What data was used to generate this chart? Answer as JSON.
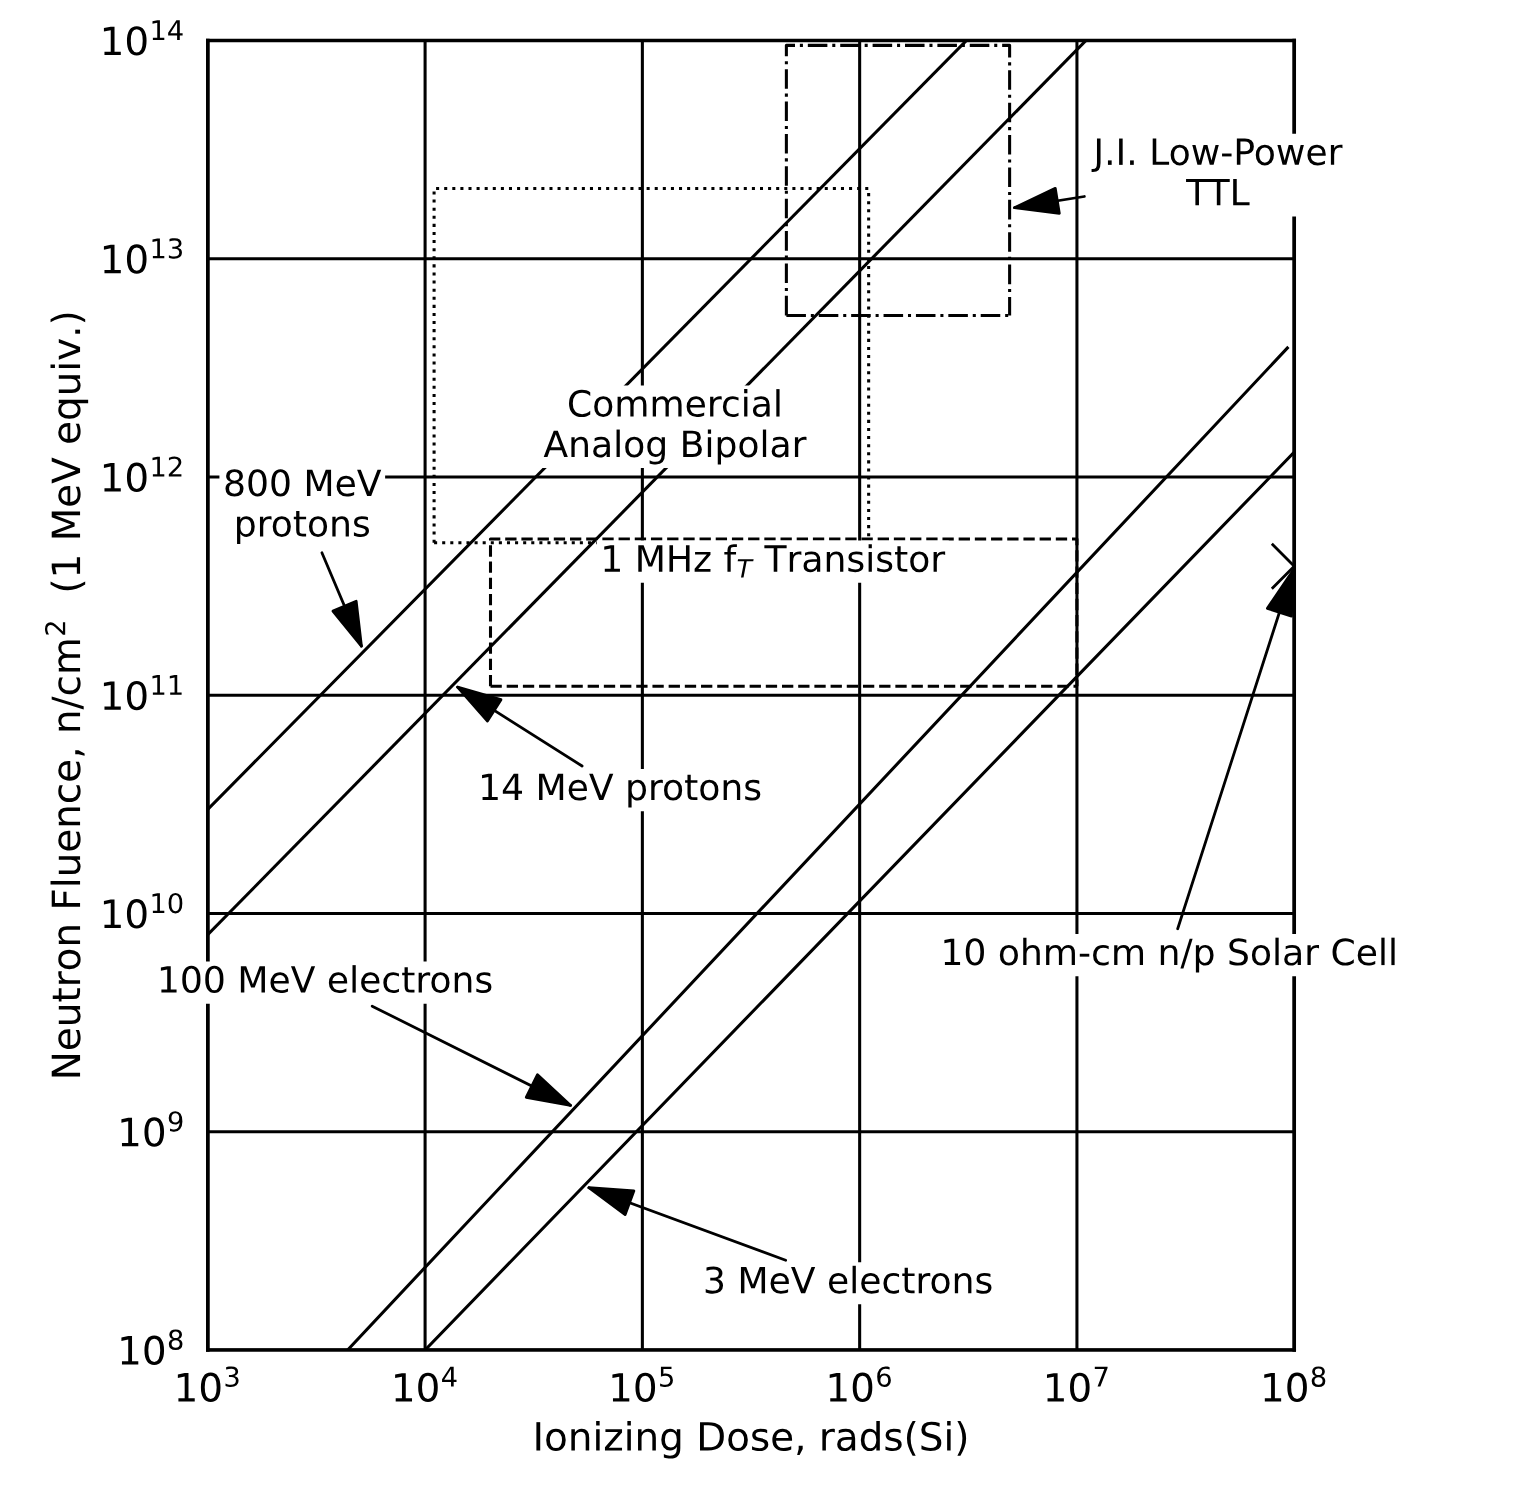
{
  "chart_data": {
    "type": "line",
    "xlabel": "Ionizing Dose, rads(Si)",
    "ylabel": "Neutron Fluence, n/cm$^{2}$  (1 MeV equiv.)",
    "log": "xy",
    "xlim": [
      1000,
      100000000
    ],
    "ylim": [
      100000000,
      100000000000000
    ],
    "xticks": [
      {
        "value": 1000,
        "label": "10$^{3}$"
      },
      {
        "value": 10000,
        "label": "10$^{4}$"
      },
      {
        "value": 100000,
        "label": "10$^{5}$"
      },
      {
        "value": 1000000,
        "label": "10$^{6}$"
      },
      {
        "value": 10000000,
        "label": "10$^{7}$"
      },
      {
        "value": 100000000,
        "label": "10$^{8}$"
      }
    ],
    "yticks": [
      {
        "value": 100000000,
        "label": "10$^{8}$"
      },
      {
        "value": 1000000000,
        "label": "10$^{9}$"
      },
      {
        "value": 10000000000,
        "label": "10$^{10}$"
      },
      {
        "value": 100000000000,
        "label": "10$^{11}$"
      },
      {
        "value": 1000000000000,
        "label": "10$^{12}$"
      },
      {
        "value": 10000000000000,
        "label": "10$^{13}$"
      },
      {
        "value": 100000000000000,
        "label": "10$^{14}$"
      }
    ],
    "grid": true,
    "legend": false,
    "series": [
      {
        "color": "#000000",
        "line_style": "solid",
        "x": [
          1000,
          3100000
        ],
        "values": [
          30000000000,
          100000000000000
        ]
      },
      {
        "color": "#000000",
        "line_style": "solid",
        "x": [
          1000,
          11000000
        ],
        "values": [
          8000000000,
          100000000000000
        ]
      },
      {
        "color": "#000000",
        "line_style": "solid",
        "x": [
          4400,
          93000000
        ],
        "values": [
          100000000,
          3900000000000
        ]
      },
      {
        "color": "#000000",
        "line_style": "solid",
        "x": [
          10000,
          100000000
        ],
        "values": [
          100000000,
          1300000000000
        ]
      },
      {
        "color": "#000000",
        "line_style": "dotted",
        "x": [
          11000,
          11000,
          1100000,
          1100000
        ],
        "values": [
          500000000000,
          21000000000000,
          21000000000000,
          500000000000
        ]
      },
      {
        "color": "#000000",
        "line_style": "dotted",
        "x": [
          11000,
          1100000
        ],
        "values": [
          500000000000,
          500000000000
        ]
      },
      {
        "color": "#000000",
        "line_style": "dashdot",
        "x": [
          460000,
          460000,
          4900000,
          4900000
        ],
        "values": [
          5500000000000,
          95000000000000,
          95000000000000,
          5500000000000
        ]
      },
      {
        "color": "#000000",
        "line_style": "dashdot",
        "x": [
          460000,
          4900000
        ],
        "values": [
          5500000000000,
          5500000000000
        ]
      },
      {
        "color": "#000000",
        "line_style": "dashed",
        "x": [
          20000,
          20000,
          10000000,
          10000000
        ],
        "values": [
          110000000000,
          520000000000,
          520000000000,
          110000000000
        ]
      },
      {
        "color": "#000000",
        "line_style": "dashed",
        "x": [
          20000,
          10000000
        ],
        "values": [
          110000000000,
          110000000000
        ]
      },
      {
        "type": "scatter",
        "color": "#000000",
        "marker": "cross",
        "x": [
          100000000
        ],
        "values": [
          390000000000
        ]
      }
    ],
    "annotations": [
      {
        "text": "800 MeV\nprotons",
        "x": 5200,
        "y": 160000000000
      },
      {
        "text": "14 MeV protons",
        "x": 13500,
        "y": 112000000000
      },
      "Commercial\nAnalog Bipolar",
      {
        "text": "J.I. Low-Power\nTTL",
        "x": 4900000,
        "y": 17000000000000
      },
      "1 MHz f$_{T}$ Transistor",
      {
        "text": "10 ohm-cm n/p Solar Cell",
        "x": 100000000,
        "y": 390000000000
      },
      {
        "text": "100 MeV electrons",
        "x": 49000,
        "y": 1290000000
      },
      {
        "text": "3 MeV electrons",
        "x": 54000,
        "y": 564000000
      }
    ]
  }
}
